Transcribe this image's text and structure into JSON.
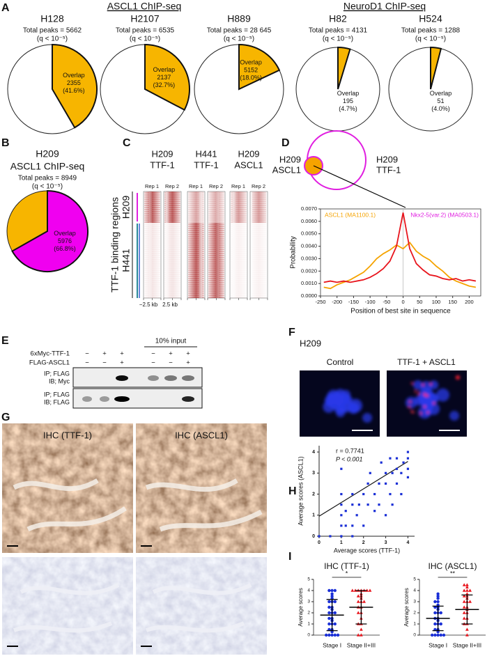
{
  "panel_letters": [
    "A",
    "B",
    "C",
    "D",
    "E",
    "F",
    "G",
    "H",
    "I"
  ],
  "group_titles": [
    "ASCL1 ChIP-seq",
    "NeuroD1 ChIP-seq"
  ],
  "chart_data": [
    {
      "type": "pie",
      "title": "H128",
      "subtitle": "Total peaks = 5662",
      "note": "(q < 10⁻⁵)",
      "slice_label": "Overlap",
      "count": 2355,
      "values": [
        41.6
      ],
      "value_labels": [
        "(41.6%)"
      ],
      "colors": [
        "#f7b500",
        "#ffffff"
      ]
    },
    {
      "type": "pie",
      "title": "H2107",
      "subtitle": "Total peaks = 6535",
      "note": "(q < 10⁻⁵)",
      "slice_label": "Overlap",
      "count": 2137,
      "values": [
        32.7
      ],
      "value_labels": [
        "(32.7%)"
      ],
      "colors": [
        "#f7b500",
        "#ffffff"
      ]
    },
    {
      "type": "pie",
      "title": "H889",
      "subtitle": "Total peaks = 28 645",
      "note": "(q < 10⁻⁵)",
      "slice_label": "Overlap",
      "count": 5152,
      "values": [
        18.0
      ],
      "value_labels": [
        "(18.0%)"
      ],
      "colors": [
        "#f7b500",
        "#ffffff"
      ]
    },
    {
      "type": "pie",
      "title": "H82",
      "subtitle": "Total peaks = 4131",
      "note": "(q < 10⁻⁵)",
      "slice_label": "Overlap",
      "count": 195,
      "values": [
        4.7
      ],
      "value_labels": [
        "(4.7%)"
      ],
      "colors": [
        "#f7b500",
        "#ffffff"
      ]
    },
    {
      "type": "pie",
      "title": "H524",
      "subtitle": "Total peaks = 1288",
      "note": "(q < 10⁻⁵)",
      "slice_label": "Overlap",
      "count": 51,
      "values": [
        4.0
      ],
      "value_labels": [
        "(4.0%)"
      ],
      "colors": [
        "#f7b500",
        "#ffffff"
      ]
    },
    {
      "type": "pie",
      "title": "H209",
      "heading": "ASCL1 ChIP-seq",
      "subtitle": "Total peaks = 8949",
      "note": "(q < 10⁻⁵)",
      "slice_label": "Overlap",
      "count": 5976,
      "values": [
        66.8
      ],
      "value_labels": [
        "(66.8%)"
      ],
      "colors": [
        "#f000f0",
        "#f7b500"
      ]
    },
    {
      "type": "line",
      "venn_labels": [
        [
          "H209",
          "ASCL1"
        ],
        [
          "H209",
          "TTF-1"
        ]
      ],
      "xlabel": "Position of best site in sequence",
      "ylabel": "Probability",
      "x": [
        -240,
        -220,
        -200,
        -180,
        -160,
        -140,
        -120,
        -100,
        -80,
        -60,
        -40,
        -20,
        0,
        20,
        40,
        60,
        80,
        100,
        120,
        140,
        160,
        180,
        200,
        220
      ],
      "series": [
        {
          "name": "ASCL1 (MA1100.1)",
          "color": "#f5a300",
          "values": [
            0.0007,
            0.0006,
            0.0009,
            0.0011,
            0.0013,
            0.0016,
            0.0019,
            0.0024,
            0.003,
            0.0034,
            0.0037,
            0.0041,
            0.0038,
            0.0043,
            0.0036,
            0.0032,
            0.0029,
            0.0024,
            0.002,
            0.0015,
            0.0012,
            0.001,
            0.0008,
            0.0007
          ]
        },
        {
          "name": "Nkx2-5(var.2) (MA0503.1)",
          "color": "#e8141c",
          "label_color": "#e01ee0",
          "values": [
            0.0011,
            0.0012,
            0.0011,
            0.0012,
            0.0011,
            0.0012,
            0.0013,
            0.0015,
            0.0018,
            0.0022,
            0.0028,
            0.004,
            0.0067,
            0.0038,
            0.0026,
            0.0021,
            0.0017,
            0.0016,
            0.0014,
            0.0013,
            0.0014,
            0.0012,
            0.0013,
            0.0012
          ]
        }
      ],
      "xlim": [
        -250,
        235
      ],
      "xticks": [
        -250,
        -200,
        -150,
        -100,
        -50,
        0,
        50,
        100,
        150,
        200
      ],
      "ylim": [
        0,
        0.007
      ],
      "yticks": [
        {
          "value": 0,
          "label": "0.0000"
        },
        {
          "value": 0.001,
          "label": "0.0010"
        },
        {
          "value": 0.002,
          "label": "0.0020"
        },
        {
          "value": 0.003,
          "label": "0.0030"
        },
        {
          "value": 0.004,
          "label": "0.0040"
        },
        {
          "value": 0.005,
          "label": "0.0050"
        },
        {
          "value": 0.006,
          "label": "0.0060"
        },
        {
          "value": 0.007,
          "label": "0.0070"
        }
      ]
    },
    {
      "type": "scatter",
      "annotations": [
        "r = 0.7741",
        "P < 0.001"
      ],
      "xlabel": "Average scores (TTF-1)",
      "ylabel": "Average scores (ASCL1)",
      "color": "#1a2fd6",
      "x": [
        0,
        0.5,
        1,
        1,
        1,
        1,
        1,
        1,
        1.2,
        1.2,
        1.5,
        1.5,
        1.5,
        1.5,
        1.7,
        1.8,
        2,
        2,
        2.2,
        2.2,
        2.3,
        2.5,
        2.5,
        2.7,
        2.7,
        2.8,
        3,
        3,
        3,
        3.2,
        3.2,
        3.3,
        3.3,
        3.5,
        3.5,
        3.5,
        3.7,
        3.7,
        3.8,
        4,
        4,
        4,
        4
      ],
      "values": [
        0,
        0,
        0,
        0.5,
        1,
        1.5,
        2,
        3.2,
        0.5,
        1.2,
        2,
        1.5,
        0.5,
        0,
        1,
        1.5,
        2,
        0.5,
        2.5,
        1.5,
        3,
        1.2,
        2,
        2.5,
        1.5,
        3.5,
        3,
        1,
        2.5,
        2,
        3.7,
        3,
        1.5,
        2.5,
        3.7,
        3.2,
        2,
        3,
        3.5,
        3.7,
        4,
        3.2,
        2.8
      ],
      "fit": {
        "x": [
          0,
          4
        ],
        "y": [
          0.95,
          3.55
        ]
      },
      "xlim": [
        0,
        4.3
      ],
      "ylim": [
        0,
        4.3
      ],
      "xticks": [
        0,
        1,
        2,
        3,
        4
      ],
      "yticks": [
        0,
        1,
        2,
        3,
        4
      ]
    },
    {
      "type": "strip",
      "title": "IHC (TTF-1)",
      "ylabel": "Average scores",
      "categories": [
        "Stage I",
        "Stage II+III"
      ],
      "significance": "*",
      "groups": [
        {
          "color": "#1a2fd6",
          "marker": "circle",
          "mean": 1.8,
          "sd": 1.4,
          "values": [
            0,
            0,
            0,
            0,
            0,
            0.3,
            0.5,
            0.5,
            1,
            1,
            1,
            1.3,
            1.5,
            1.5,
            2,
            2,
            2,
            2.3,
            2.5,
            2.5,
            3,
            3,
            3,
            3.3,
            3.5,
            3.7,
            4,
            4,
            4
          ]
        },
        {
          "color": "#e8141c",
          "marker": "triangle",
          "mean": 2.5,
          "sd": 1.5,
          "values": [
            0,
            0,
            0.5,
            1,
            1,
            1.5,
            2,
            2,
            2.5,
            2.5,
            3,
            3,
            3,
            3.3,
            3.5,
            3.5,
            3.7,
            4,
            4,
            4,
            4,
            4,
            4,
            4
          ]
        }
      ],
      "ylim": [
        0,
        5
      ],
      "yticks": [
        0,
        1,
        2,
        3,
        4,
        5
      ]
    },
    {
      "type": "strip",
      "title": "IHC (ASCL1)",
      "ylabel": "Average scores",
      "categories": [
        "Stage I",
        "Stage II+III"
      ],
      "significance": "**",
      "groups": [
        {
          "color": "#1a2fd6",
          "marker": "circle",
          "mean": 1.5,
          "sd": 1.1,
          "values": [
            0,
            0,
            0,
            0,
            0,
            0.3,
            0.5,
            0.5,
            1,
            1,
            1,
            1.3,
            1.5,
            1.5,
            2,
            2,
            2,
            2.3,
            2.5,
            2.5,
            2.7,
            3,
            3,
            3.3,
            3.5,
            3.7
          ]
        },
        {
          "color": "#e8141c",
          "marker": "triangle",
          "mean": 2.3,
          "sd": 1.3,
          "values": [
            0,
            0.5,
            1,
            1,
            1.5,
            1.5,
            2,
            2,
            2.3,
            2.5,
            2.5,
            3,
            3,
            3,
            3.3,
            3.5,
            3.5,
            3.7,
            4,
            4,
            4,
            4.3,
            4.5,
            4.5
          ]
        }
      ],
      "ylim": [
        0,
        5
      ],
      "yticks": [
        0,
        1,
        2,
        3,
        4,
        5
      ]
    }
  ],
  "heatmap": {
    "columns": [
      [
        "H209",
        "TTF-1"
      ],
      [
        "H441",
        "TTF-1"
      ],
      [
        "H209",
        "ASCL1"
      ]
    ],
    "reps": [
      "Rep 1",
      "Rep 2"
    ],
    "row_title": "TTF-1 binding regions",
    "row_groups": [
      "H209",
      "H441"
    ],
    "x_labels": [
      "−2.5 kb",
      "2.5 kb"
    ]
  },
  "blot": {
    "rows": [
      {
        "label": "6xMyc-TTF-1",
        "signs": [
          "−",
          "+",
          "+",
          "−",
          "+",
          "+"
        ]
      },
      {
        "label": "FLAG-ASCL1",
        "signs": [
          "−",
          "−",
          "+",
          "−",
          "−",
          "+"
        ]
      }
    ],
    "input_label": "10% input",
    "panels": [
      [
        "IP; FLAG",
        "IB; Myc"
      ],
      [
        "IP; FLAG",
        "IB; FLAG"
      ]
    ]
  },
  "if": {
    "cell_line": "H209",
    "conditions": [
      "Control",
      "TTF-1 + ASCL1"
    ]
  },
  "ihc": {
    "titles": [
      "IHC (TTF-1)",
      "IHC (ASCL1)"
    ]
  }
}
